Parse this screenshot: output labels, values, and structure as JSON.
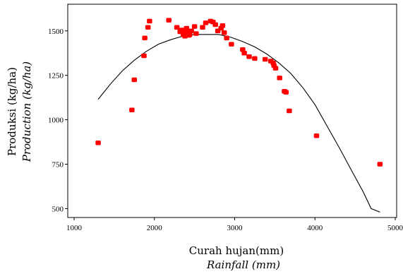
{
  "chart_data": {
    "type": "scatter",
    "title": "",
    "xlabel": "Curah hujan(mm)",
    "xlabel_en": "Rainfall (mm)",
    "ylabel": "Produksi (kg/ha)",
    "ylabel_en": "Production (kg/ha)",
    "xlim": [
      1000,
      5000
    ],
    "ylim": [
      450,
      1650
    ],
    "x_ticks": [
      1000,
      2000,
      3000,
      4000,
      5000
    ],
    "y_ticks": [
      500,
      750,
      1000,
      1250,
      1500
    ],
    "x_tick_labels": [
      "1000",
      "2000",
      "3000",
      "4000",
      "5000"
    ],
    "y_tick_labels": [
      "500",
      "750",
      "1000",
      "1250",
      "1500"
    ],
    "grid": false,
    "marker_color": "#ff0000",
    "line_color": "#000000",
    "series": [
      {
        "kind": "points",
        "x": [
          1300,
          1720,
          1750,
          1870,
          1880,
          1920,
          1940,
          2180,
          2280,
          2320,
          2340,
          2360,
          2380,
          2390,
          2400,
          2420,
          2430,
          2440,
          2460,
          2500,
          2520,
          2600,
          2640,
          2700,
          2730,
          2760,
          2790,
          2830,
          2850,
          2870,
          2900,
          2960,
          3100,
          3120,
          3180,
          3250,
          3380,
          3450,
          3480,
          3490,
          3510,
          3560,
          3620,
          3640,
          3680,
          4020,
          4810
        ],
        "y": [
          870,
          1055,
          1225,
          1360,
          1460,
          1520,
          1555,
          1560,
          1520,
          1495,
          1505,
          1480,
          1470,
          1495,
          1515,
          1490,
          1475,
          1480,
          1500,
          1525,
          1485,
          1520,
          1545,
          1555,
          1550,
          1535,
          1500,
          1515,
          1530,
          1490,
          1460,
          1425,
          1395,
          1375,
          1355,
          1345,
          1340,
          1330,
          1320,
          1305,
          1290,
          1235,
          1160,
          1155,
          1050,
          910,
          750
        ]
      },
      {
        "kind": "line",
        "x": [
          1300,
          1450,
          1600,
          1750,
          1900,
          2050,
          2200,
          2350,
          2500,
          2650,
          2800,
          2950,
          3100,
          3250,
          3400,
          3550,
          3700,
          3850,
          4000,
          4150,
          4300,
          4450,
          4600,
          4700,
          4810
        ],
        "y": [
          1115,
          1200,
          1275,
          1335,
          1385,
          1425,
          1450,
          1470,
          1480,
          1480,
          1480,
          1465,
          1440,
          1410,
          1370,
          1320,
          1260,
          1180,
          1085,
          965,
          845,
          720,
          595,
          500,
          480
        ]
      }
    ]
  }
}
